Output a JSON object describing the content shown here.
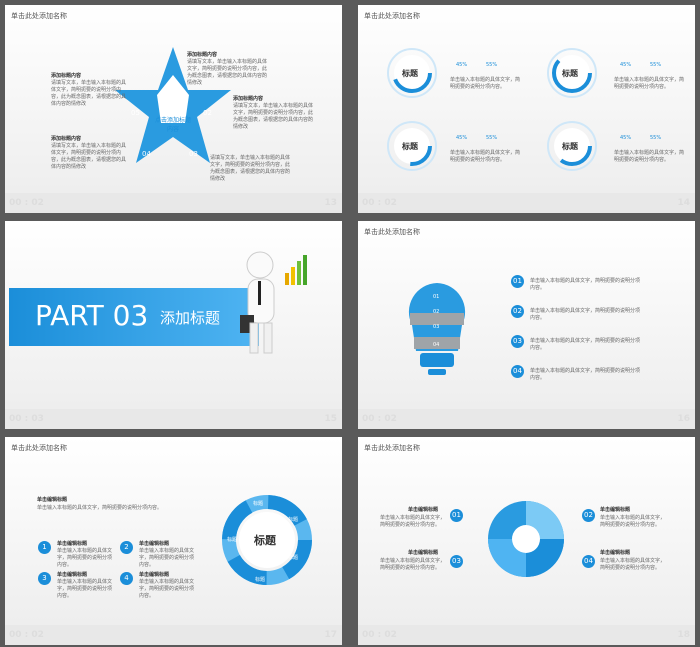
{
  "colors": {
    "accent": "#1b8ed9",
    "light_accent": "#4fb4f2",
    "bg": "#5a5a5a"
  },
  "slides": [
    {
      "num": "13",
      "time": "00 : 02",
      "title": "单击此处添加名称",
      "center": "点击添加标题内容",
      "points": [
        "01",
        "02",
        "03",
        "04",
        "05"
      ],
      "heading": "添加标题内容",
      "body": "请填写文本，单击输入本标题的具体文字，简明扼要的说明分项内容，此为概念图表，请根据您的具体内容酌情修改"
    },
    {
      "num": "14",
      "time": "00 : 02",
      "title": "单击此处添加名称",
      "label": "标题",
      "pct_a": "45%",
      "pct_b": "55%",
      "body": "单击输入本标题的具体文字，简明扼要的说明分项内容。"
    },
    {
      "num": "15",
      "time": "00 : 03",
      "part": "PART 03",
      "heading": "添加标题"
    },
    {
      "num": "16",
      "time": "00 : 02",
      "title": "单击此处添加名称",
      "points": [
        "01",
        "02",
        "03",
        "04"
      ],
      "body": "单击输入本标题的具体文字，简明扼要的说明分项内容。"
    },
    {
      "num": "17",
      "time": "00 : 02",
      "title": "单击此处添加名称",
      "label": "标题",
      "heading": "单击编辑标题",
      "body": "单击输入本标题的具体文字，简明扼要的说明分项内容。",
      "points": [
        "1",
        "2",
        "3",
        "4"
      ],
      "ring": [
        "标题",
        "标题",
        "标题",
        "标题",
        "标题"
      ]
    },
    {
      "num": "18",
      "time": "00 : 02",
      "title": "单击此处添加名称",
      "heading": "单击编辑标题",
      "body": "单击输入本标题的具体文字，简明扼要的说明分项内容。",
      "points": [
        "01",
        "02",
        "03",
        "04"
      ]
    }
  ]
}
